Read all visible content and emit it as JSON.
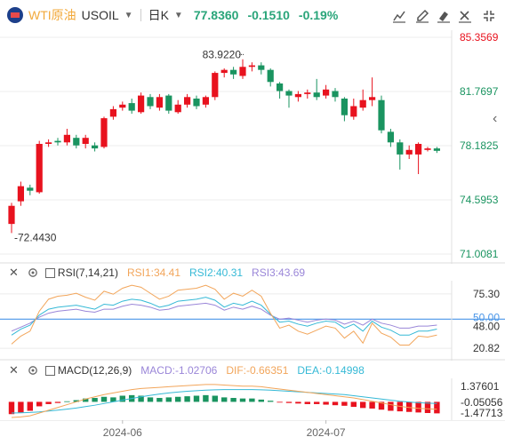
{
  "header": {
    "instrument_name": "WTI原油",
    "instrument_code": "USOIL",
    "period": "日K",
    "last_price": "77.8360",
    "change": "-0.1510",
    "change_pct": "-0.19%"
  },
  "toolbar": [
    "drawing-tool-icon",
    "pencil-icon",
    "eraser-icon",
    "close-icon",
    "collapse-icon"
  ],
  "colors": {
    "up": "#e8121e",
    "down": "#1a9460",
    "ma1": "#f2a55a",
    "ma2": "#35b9d6",
    "ma3": "#9a86d8",
    "level_line": "#4a96e8",
    "grid": "#ececec"
  },
  "price_axis": {
    "ticks": [
      "85.3569",
      "81.7697",
      "78.1825",
      "74.5953",
      "71.0081"
    ],
    "range": [
      71.0081,
      85.3569
    ]
  },
  "price_annotations": {
    "high_label": "83.9220",
    "low_label": "72.4430",
    "high": 83.922,
    "low": 72.443
  },
  "rsi": {
    "label": "RSI(7,14,21)",
    "values": [
      {
        "name": "RSI1",
        "text": "RSI1:34.41",
        "color": "#f2a55a"
      },
      {
        "name": "RSI2",
        "text": "RSI2:40.31",
        "color": "#35b9d6"
      },
      {
        "name": "RSI3",
        "text": "RSI3:43.69",
        "color": "#9a86d8"
      }
    ],
    "ticks": [
      "75.30",
      "50.00",
      "48.00",
      "20.82"
    ],
    "range": [
      12,
      85
    ],
    "level": 50,
    "series1": [
      25,
      33,
      38,
      58,
      70,
      73,
      74,
      76,
      72,
      69,
      78,
      75,
      81,
      84,
      82,
      76,
      70,
      73,
      79,
      80,
      81,
      84,
      80,
      70,
      76,
      73,
      79,
      73,
      56,
      41,
      44,
      38,
      35,
      39,
      43,
      41,
      31,
      38,
      26,
      46,
      36,
      32,
      24,
      24,
      33,
      32,
      34
    ],
    "series2": [
      34,
      40,
      44,
      54,
      60,
      62,
      63,
      64,
      62,
      60,
      65,
      64,
      68,
      70,
      69,
      66,
      62,
      64,
      68,
      69,
      70,
      72,
      69,
      62,
      66,
      64,
      68,
      64,
      55,
      47,
      48,
      45,
      43,
      46,
      48,
      47,
      41,
      45,
      38,
      48,
      42,
      39,
      34,
      34,
      38,
      38,
      40
    ],
    "series3": [
      38,
      42,
      46,
      52,
      56,
      58,
      59,
      60,
      58,
      57,
      60,
      60,
      63,
      65,
      64,
      62,
      59,
      60,
      63,
      64,
      65,
      66,
      64,
      59,
      62,
      60,
      63,
      60,
      54,
      50,
      51,
      49,
      47,
      49,
      50,
      49,
      45,
      48,
      44,
      50,
      46,
      44,
      41,
      41,
      43,
      43,
      44
    ]
  },
  "macd": {
    "label": "MACD(12,26,9)",
    "values": [
      {
        "name": "MACD",
        "text": "MACD:-1.02706",
        "color": "#9a86d8"
      },
      {
        "name": "DIF",
        "text": "DIF:-0.66351",
        "color": "#f2a55a"
      },
      {
        "name": "DEA",
        "text": "DEA:-0.14998",
        "color": "#35b9d6"
      }
    ],
    "ticks": [
      "1.37601",
      "-0.05056",
      "-1.47713"
    ],
    "range": [
      -1.477,
      2.1
    ],
    "hist": [
      -1.1,
      -0.95,
      -0.8,
      -0.4,
      -0.2,
      -0.1,
      0.05,
      0.15,
      0.3,
      0.35,
      0.45,
      0.4,
      0.55,
      0.6,
      0.55,
      0.4,
      0.35,
      0.4,
      0.45,
      0.5,
      0.55,
      0.6,
      0.55,
      0.4,
      0.35,
      0.3,
      0.3,
      0.2,
      0.1,
      -0.05,
      -0.1,
      -0.15,
      -0.2,
      -0.2,
      -0.25,
      -0.3,
      -0.35,
      -0.45,
      -0.55,
      -0.6,
      -0.7,
      -0.8,
      -0.85,
      -0.9,
      -0.95,
      -1.0,
      -1.03
    ],
    "dif": [
      -1.4,
      -1.35,
      -1.25,
      -1.0,
      -0.75,
      -0.5,
      -0.25,
      0.0,
      0.25,
      0.45,
      0.65,
      0.8,
      0.95,
      1.1,
      1.2,
      1.25,
      1.3,
      1.35,
      1.4,
      1.45,
      1.5,
      1.55,
      1.55,
      1.5,
      1.45,
      1.4,
      1.4,
      1.35,
      1.25,
      1.15,
      1.05,
      0.95,
      0.85,
      0.75,
      0.65,
      0.55,
      0.45,
      0.35,
      0.2,
      0.05,
      -0.1,
      -0.25,
      -0.4,
      -0.5,
      -0.58,
      -0.62,
      -0.66
    ],
    "dea": [
      -1.0,
      -0.98,
      -0.95,
      -0.9,
      -0.82,
      -0.74,
      -0.65,
      -0.55,
      -0.42,
      -0.3,
      -0.15,
      0.0,
      0.15,
      0.3,
      0.45,
      0.58,
      0.7,
      0.8,
      0.88,
      0.95,
      1.0,
      1.05,
      1.08,
      1.1,
      1.1,
      1.1,
      1.1,
      1.08,
      1.05,
      1.0,
      0.95,
      0.9,
      0.85,
      0.8,
      0.75,
      0.7,
      0.65,
      0.55,
      0.45,
      0.35,
      0.25,
      0.15,
      0.05,
      -0.02,
      -0.08,
      -0.12,
      -0.15
    ]
  },
  "time_axis": {
    "labels": [
      {
        "text": "2024-06",
        "index": 12
      },
      {
        "text": "2024-07",
        "index": 34
      }
    ]
  },
  "chart_data": {
    "type": "candlestick",
    "x_labels": [
      "2024-06",
      "2024-07"
    ],
    "y_range": [
      71.0081,
      85.3569
    ],
    "candles": [
      [
        73.0,
        74.2,
        74.4,
        72.4
      ],
      [
        74.5,
        75.5,
        75.8,
        74.2
      ],
      [
        75.4,
        75.2,
        75.6,
        74.9
      ],
      [
        75.1,
        78.3,
        78.5,
        75.0
      ],
      [
        78.3,
        78.4,
        78.6,
        78.1
      ],
      [
        78.5,
        78.4,
        78.7,
        78.2
      ],
      [
        78.4,
        78.9,
        79.3,
        78.2
      ],
      [
        78.7,
        78.2,
        78.9,
        78.0
      ],
      [
        78.3,
        78.7,
        78.9,
        78.0
      ],
      [
        78.2,
        78.0,
        78.4,
        77.8
      ],
      [
        78.1,
        80.0,
        80.1,
        78.0
      ],
      [
        80.1,
        80.6,
        80.8,
        79.9
      ],
      [
        80.7,
        80.9,
        81.1,
        80.5
      ],
      [
        81.0,
        80.5,
        81.3,
        80.3
      ],
      [
        80.4,
        81.5,
        81.7,
        80.3
      ],
      [
        81.4,
        80.8,
        81.6,
        80.6
      ],
      [
        80.7,
        81.4,
        81.6,
        80.5
      ],
      [
        81.5,
        80.5,
        81.6,
        80.3
      ],
      [
        80.4,
        80.9,
        81.2,
        80.3
      ],
      [
        80.9,
        81.4,
        81.6,
        80.7
      ],
      [
        81.3,
        80.8,
        81.5,
        80.6
      ],
      [
        80.9,
        81.4,
        81.5,
        80.7
      ],
      [
        81.4,
        83.0,
        83.1,
        81.2
      ],
      [
        83.0,
        83.2,
        83.3,
        82.7
      ],
      [
        83.2,
        82.9,
        83.4,
        82.6
      ],
      [
        82.8,
        83.4,
        83.9,
        82.6
      ],
      [
        83.4,
        83.5,
        83.7,
        83.1
      ],
      [
        83.5,
        83.2,
        83.7,
        82.9
      ],
      [
        83.2,
        82.4,
        83.3,
        82.1
      ],
      [
        82.3,
        81.8,
        82.4,
        81.3
      ],
      [
        81.8,
        81.5,
        81.9,
        80.7
      ],
      [
        81.4,
        81.6,
        81.8,
        81.1
      ],
      [
        81.6,
        81.7,
        81.9,
        81.3
      ],
      [
        81.7,
        81.4,
        82.6,
        81.2
      ],
      [
        81.5,
        81.9,
        82.2,
        81.3
      ],
      [
        81.8,
        81.4,
        82.0,
        81.1
      ],
      [
        81.3,
        80.2,
        81.4,
        79.8
      ],
      [
        80.1,
        80.8,
        81.3,
        79.9
      ],
      [
        80.7,
        81.2,
        81.9,
        80.5
      ],
      [
        81.2,
        81.4,
        82.7,
        80.8
      ],
      [
        81.2,
        79.2,
        81.5,
        79.0
      ],
      [
        79.1,
        78.4,
        79.3,
        78.1
      ],
      [
        78.4,
        77.6,
        78.6,
        76.6
      ],
      [
        77.6,
        77.9,
        78.2,
        77.3
      ],
      [
        77.6,
        78.3,
        78.4,
        76.3
      ],
      [
        77.9,
        78.0,
        78.1,
        77.8
      ],
      [
        78.0,
        77.84,
        78.1,
        77.7
      ]
    ],
    "rsi": {
      "RSI1": 34.41,
      "RSI2": 40.31,
      "RSI3": 43.69
    },
    "macd": {
      "MACD": -1.02706,
      "DIF": -0.66351,
      "DEA": -0.14998
    }
  }
}
